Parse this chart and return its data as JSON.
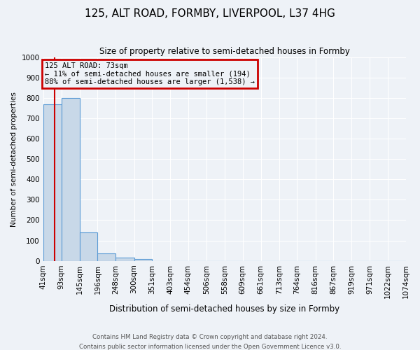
{
  "title": "125, ALT ROAD, FORMBY, LIVERPOOL, L37 4HG",
  "subtitle": "Size of property relative to semi-detached houses in Formby",
  "xlabel": "Distribution of semi-detached houses by size in Formby",
  "ylabel": "Number of semi-detached properties",
  "footnote1": "Contains HM Land Registry data © Crown copyright and database right 2024.",
  "footnote2": "Contains public sector information licensed under the Open Government Licence v3.0.",
  "bin_edges": [
    41,
    93,
    145,
    196,
    248,
    300,
    351,
    403,
    454,
    506,
    558,
    609,
    661,
    713,
    764,
    816,
    867,
    919,
    971,
    1022,
    1074
  ],
  "bar_heights": [
    770,
    800,
    140,
    35,
    15,
    10,
    0,
    0,
    0,
    0,
    0,
    0,
    0,
    0,
    0,
    0,
    0,
    0,
    0,
    0
  ],
  "bar_color": "#c8d8e8",
  "bar_edge_color": "#5b9bd5",
  "subject_value": 73,
  "subject_line_color": "#cc0000",
  "annotation_line1": "125 ALT ROAD: 73sqm",
  "annotation_line2": "← 11% of semi-detached houses are smaller (194)",
  "annotation_line3": "88% of semi-detached houses are larger (1,538) →",
  "annotation_box_color": "#cc0000",
  "ylim": [
    0,
    1000
  ],
  "yticks": [
    0,
    100,
    200,
    300,
    400,
    500,
    600,
    700,
    800,
    900,
    1000
  ],
  "tick_labels": [
    "41sqm",
    "93sqm",
    "145sqm",
    "196sqm",
    "248sqm",
    "300sqm",
    "351sqm",
    "403sqm",
    "454sqm",
    "506sqm",
    "558sqm",
    "609sqm",
    "661sqm",
    "713sqm",
    "764sqm",
    "816sqm",
    "867sqm",
    "919sqm",
    "971sqm",
    "1022sqm",
    "1074sqm"
  ],
  "background_color": "#eef2f7",
  "grid_color": "#ffffff"
}
